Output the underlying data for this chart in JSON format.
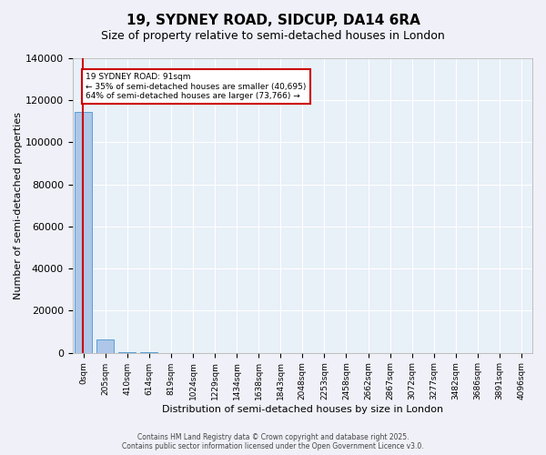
{
  "title": "19, SYDNEY ROAD, SIDCUP, DA14 6RA",
  "subtitle": "Size of property relative to semi-detached houses in London",
  "xlabel": "Distribution of semi-detached houses by size in London",
  "ylabel": "Number of semi-detached properties",
  "property_size": 91,
  "property_label": "19 SYDNEY ROAD: 91sqm",
  "pct_smaller": 35,
  "count_smaller": 40695,
  "pct_larger": 64,
  "count_larger": 73766,
  "bin_labels": [
    "0sqm",
    "205sqm",
    "410sqm",
    "614sqm",
    "819sqm",
    "1024sqm",
    "1229sqm",
    "1434sqm",
    "1638sqm",
    "1843sqm",
    "2048sqm",
    "2253sqm",
    "2458sqm",
    "2662sqm",
    "2867sqm",
    "3072sqm",
    "3277sqm",
    "3482sqm",
    "3686sqm",
    "3891sqm",
    "4096sqm"
  ],
  "bar_values": [
    114461,
    6200,
    280,
    80,
    30,
    15,
    10,
    8,
    5,
    4,
    3,
    3,
    2,
    2,
    2,
    2,
    1,
    1,
    1,
    1,
    0
  ],
  "bar_color": "#aec6e8",
  "bar_edge_color": "#5a9fd4",
  "red_line_color": "#cc0000",
  "annotation_box_color": "#cc0000",
  "background_color": "#e8f0f8",
  "footer_text": "Contains HM Land Registry data © Crown copyright and database right 2025.\nContains public sector information licensed under the Open Government Licence v3.0.",
  "ylim": [
    0,
    140000
  ],
  "yticks": [
    0,
    20000,
    40000,
    60000,
    80000,
    100000,
    120000,
    140000
  ]
}
